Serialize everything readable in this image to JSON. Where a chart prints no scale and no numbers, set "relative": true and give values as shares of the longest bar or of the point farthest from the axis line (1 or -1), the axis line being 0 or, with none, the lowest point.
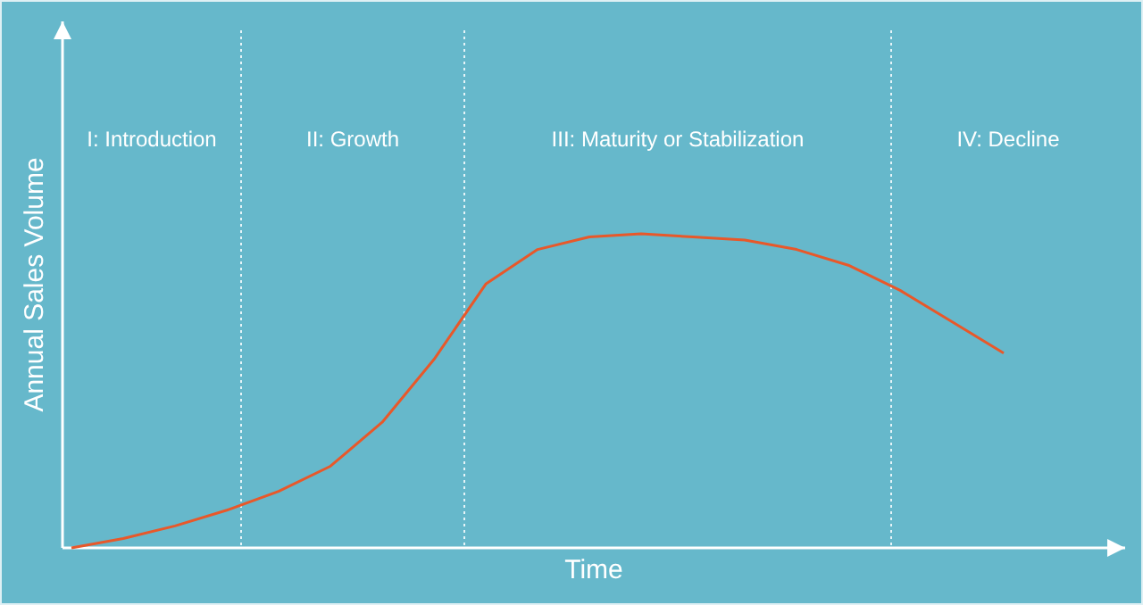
{
  "chart_data": {
    "type": "line",
    "relative": true,
    "xlabel": "Time",
    "ylabel": "Annual Sales Volume",
    "line_style": "solid",
    "categories": [
      null,
      null,
      null,
      null,
      null,
      null,
      null,
      null,
      null,
      null,
      null,
      null,
      null,
      null,
      null,
      null,
      null,
      null,
      null
    ],
    "series": [
      {
        "color": "#e8582a",
        "values": [
          0,
          0.03,
          0.07,
          0.12,
          0.18,
          0.26,
          0.4,
          0.6,
          0.84,
          0.95,
          0.99,
          1,
          0.99,
          0.98,
          0.95,
          0.9,
          0.82,
          0.72,
          0.62
        ]
      }
    ],
    "annotations": [
      "I: Introduction",
      "II: Growth",
      "III: Maturity or Stabilization",
      "IV: Decline"
    ]
  }
}
